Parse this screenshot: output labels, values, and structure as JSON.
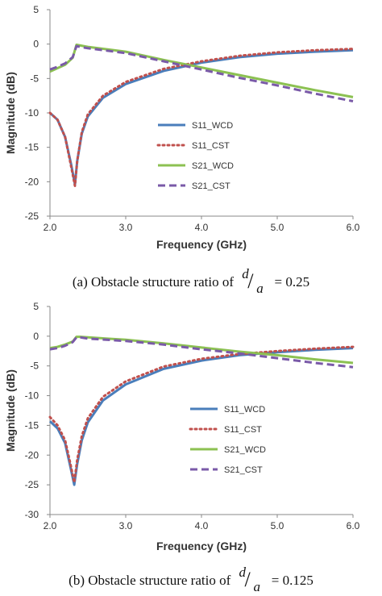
{
  "chart_data": [
    {
      "type": "line",
      "caption": {
        "prefix": "(a) Obstacle structure ratio of ",
        "num": "d",
        "den": "a",
        "suffix": " = 0.25"
      },
      "xlabel": "Frequency (GHz)",
      "ylabel": "Magnitude (dB)",
      "xlim": [
        2.0,
        6.0
      ],
      "ylim": [
        -25,
        5
      ],
      "xticks": [
        "2.0",
        "3.0",
        "4.0",
        "5.0",
        "6.0"
      ],
      "xtick_values": [
        2,
        3,
        4,
        5,
        6
      ],
      "yticks": [
        "5",
        "0",
        "-5",
        "-10",
        "-15",
        "-20",
        "-25"
      ],
      "ytick_values": [
        5,
        0,
        -5,
        -10,
        -15,
        -20,
        -25
      ],
      "legend": "center",
      "series": [
        {
          "name": "S11_WCD",
          "color": "#4a7ebb",
          "dash": "solid",
          "x": [
            2.0,
            2.1,
            2.2,
            2.28,
            2.33,
            2.36,
            2.42,
            2.5,
            2.7,
            3.0,
            3.5,
            4.0,
            4.5,
            5.0,
            5.5,
            6.0
          ],
          "y": [
            -10,
            -11,
            -13.5,
            -17.5,
            -20.4,
            -17,
            -13,
            -10.5,
            -7.8,
            -5.8,
            -3.9,
            -2.7,
            -1.9,
            -1.4,
            -1.1,
            -0.9
          ]
        },
        {
          "name": "S11_CST",
          "color": "#c0504d",
          "dash": "dot",
          "x": [
            2.0,
            2.1,
            2.2,
            2.28,
            2.33,
            2.36,
            2.42,
            2.5,
            2.7,
            3.0,
            3.5,
            4.0,
            4.5,
            5.0,
            5.5,
            6.0
          ],
          "y": [
            -10,
            -11,
            -13.5,
            -17.8,
            -20.6,
            -17,
            -12.8,
            -10.2,
            -7.5,
            -5.5,
            -3.6,
            -2.5,
            -1.7,
            -1.2,
            -0.9,
            -0.7
          ]
        },
        {
          "name": "S21_WCD",
          "color": "#8cc152",
          "dash": "solid",
          "x": [
            2.0,
            2.1,
            2.2,
            2.3,
            2.35,
            2.4,
            2.5,
            3.0,
            3.5,
            4.0,
            4.5,
            5.0,
            5.5,
            6.0
          ],
          "y": [
            -4.0,
            -3.5,
            -3.0,
            -2.0,
            -0.1,
            -0.2,
            -0.4,
            -1.1,
            -2.3,
            -3.4,
            -4.5,
            -5.6,
            -6.7,
            -7.7
          ]
        },
        {
          "name": "S21_CST",
          "color": "#7a5aa8",
          "dash": "dash",
          "x": [
            2.0,
            2.1,
            2.2,
            2.3,
            2.35,
            2.4,
            2.5,
            3.0,
            3.5,
            4.0,
            4.5,
            5.0,
            5.5,
            6.0
          ],
          "y": [
            -3.7,
            -3.3,
            -2.8,
            -1.9,
            -0.3,
            -0.4,
            -0.6,
            -1.3,
            -2.5,
            -3.7,
            -4.9,
            -6.0,
            -7.2,
            -8.3
          ]
        }
      ]
    },
    {
      "type": "line",
      "caption": {
        "prefix": "(b) Obstacle structure ratio of ",
        "num": "d",
        "den": "a",
        "suffix": " = 0.125"
      },
      "xlabel": "Frequency (GHz)",
      "ylabel": "Magnitude (dB)",
      "xlim": [
        2.0,
        6.0
      ],
      "ylim": [
        -30,
        5
      ],
      "xticks": [
        "2.0",
        "3.0",
        "4.0",
        "5.0",
        "6.0"
      ],
      "xtick_values": [
        2,
        3,
        4,
        5,
        6
      ],
      "yticks": [
        "5",
        "0",
        "-5",
        "-10",
        "-15",
        "-20",
        "-25",
        "-30"
      ],
      "ytick_values": [
        5,
        0,
        -5,
        -10,
        -15,
        -20,
        -25,
        -30
      ],
      "legend": "center",
      "series": [
        {
          "name": "S11_WCD",
          "color": "#4a7ebb",
          "dash": "solid",
          "x": [
            2.0,
            2.1,
            2.2,
            2.27,
            2.32,
            2.36,
            2.42,
            2.5,
            2.7,
            3.0,
            3.5,
            4.0,
            4.5,
            5.0,
            5.5,
            6.0
          ],
          "y": [
            -14.3,
            -15.5,
            -18,
            -22,
            -25,
            -21.5,
            -17.5,
            -14.5,
            -10.8,
            -8.1,
            -5.5,
            -4.1,
            -3.2,
            -2.7,
            -2.3,
            -2.0
          ]
        },
        {
          "name": "S11_CST",
          "color": "#c0504d",
          "dash": "dot",
          "x": [
            2.0,
            2.1,
            2.2,
            2.27,
            2.32,
            2.36,
            2.42,
            2.5,
            2.7,
            3.0,
            3.5,
            4.0,
            4.5,
            5.0,
            5.5,
            6.0
          ],
          "y": [
            -13.6,
            -15,
            -17.5,
            -21.5,
            -24.6,
            -20.8,
            -16.8,
            -13.8,
            -10.2,
            -7.6,
            -5.1,
            -3.8,
            -3.0,
            -2.5,
            -2.1,
            -1.8
          ]
        },
        {
          "name": "S21_WCD",
          "color": "#8cc152",
          "dash": "solid",
          "x": [
            2.0,
            2.1,
            2.2,
            2.3,
            2.35,
            2.4,
            2.5,
            3.0,
            3.5,
            4.0,
            4.5,
            5.0,
            5.5,
            6.0
          ],
          "y": [
            -2.0,
            -1.8,
            -1.4,
            -0.9,
            -0.1,
            -0.1,
            -0.2,
            -0.6,
            -1.2,
            -1.9,
            -2.6,
            -3.2,
            -3.9,
            -4.5
          ]
        },
        {
          "name": "S21_CST",
          "color": "#7a5aa8",
          "dash": "dash",
          "x": [
            2.0,
            2.1,
            2.2,
            2.3,
            2.35,
            2.4,
            2.5,
            3.0,
            3.5,
            4.0,
            4.5,
            5.0,
            5.5,
            6.0
          ],
          "y": [
            -2.2,
            -2.0,
            -1.6,
            -1.0,
            -0.2,
            -0.2,
            -0.4,
            -0.8,
            -1.4,
            -2.2,
            -2.9,
            -3.7,
            -4.5,
            -5.2
          ]
        }
      ]
    }
  ]
}
